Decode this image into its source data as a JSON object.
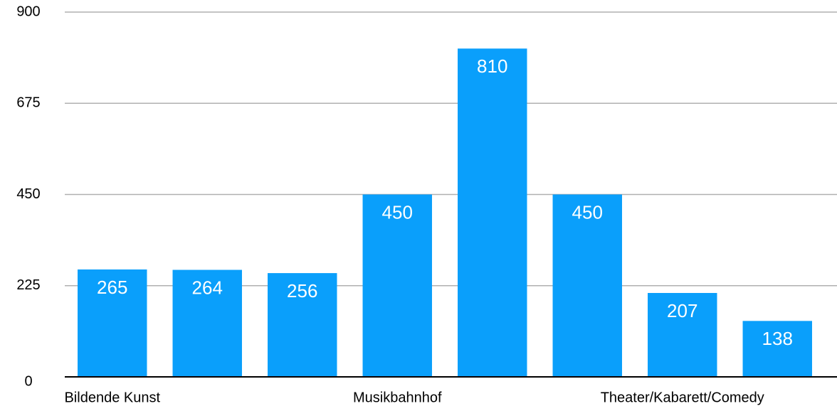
{
  "chart_data": {
    "type": "bar",
    "categories": [
      "Bildende Kunst",
      null,
      null,
      "Musikbahnhof",
      null,
      null,
      "Theater/Kabarett/Comedy",
      null
    ],
    "values": [
      265,
      264,
      256,
      450,
      810,
      450,
      207,
      138
    ],
    "color": "#0a9ffb",
    "ylim": [
      0,
      900
    ],
    "yticks": [
      0,
      225,
      450,
      675,
      900
    ],
    "grid": true
  }
}
